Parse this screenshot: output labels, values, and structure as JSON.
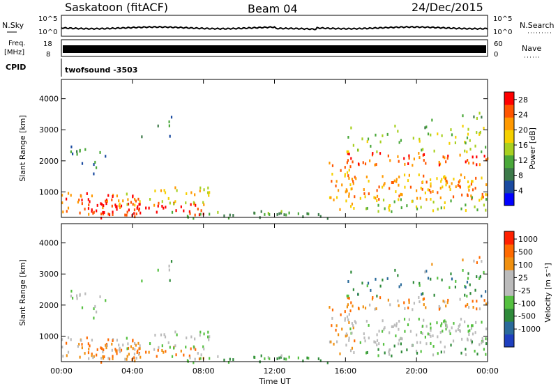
{
  "header": {
    "station": "Saskatoon (fitACF)",
    "beam": "Beam 04",
    "date": "24/Dec/2015"
  },
  "strip_labels": {
    "nsky": "N.Sky",
    "nsearch": "N.Search",
    "freq": "Freq.",
    "freq_unit": "[MHz]",
    "nave": "Nave",
    "cpid": "CPID",
    "cpid_value": "twofsound -3503",
    "nsky_ticks": [
      "10^5",
      "10^0"
    ],
    "freq_ticks": [
      "18",
      "8"
    ],
    "nave_ticks": [
      "60",
      "0"
    ]
  },
  "colors": {
    "power_scale": [
      "#0000ff",
      "#1a4aa0",
      "#3d7a4a",
      "#4aa83a",
      "#a8d020",
      "#f5d000",
      "#ff9900",
      "#ff5500",
      "#ff0000"
    ],
    "velocity_scale": [
      "#1e3fbf",
      "#2a6a9a",
      "#2f8a3a",
      "#55c040",
      "#bbbbbb",
      "#bbbbbb",
      "#f09010",
      "#ff6a00",
      "#ff2000"
    ]
  },
  "chart_data": [
    {
      "type": "heatmap",
      "name": "power",
      "xlabel": "",
      "ylabel": "Slant Range [km]",
      "x_ticks": [
        "00:00",
        "04:00",
        "08:00",
        "12:00",
        "16:00",
        "20:00",
        "00:00"
      ],
      "y_ticks": [
        "1000",
        "2000",
        "3000",
        "4000"
      ],
      "xlim": [
        0,
        24
      ],
      "ylim": [
        180,
        4620
      ],
      "colorbar_label": "Power [dB]",
      "colorbar_ticks": [
        "4",
        "8",
        "12",
        "16",
        "20",
        "24",
        "28"
      ],
      "colorbar_range": [
        0,
        30
      ]
    },
    {
      "type": "heatmap",
      "name": "velocity",
      "xlabel": "Time UT",
      "ylabel": "Slant Range [km]",
      "x_ticks": [
        "00:00",
        "04:00",
        "08:00",
        "12:00",
        "16:00",
        "20:00",
        "00:00"
      ],
      "y_ticks": [
        "1000",
        "2000",
        "3000",
        "4000"
      ],
      "xlim": [
        0,
        24
      ],
      "ylim": [
        180,
        4620
      ],
      "colorbar_label": "Velocity [m s⁻¹]",
      "colorbar_ticks": [
        "1000",
        "500",
        "100",
        "25",
        "-25",
        "-100",
        "-500",
        "-1000"
      ]
    }
  ]
}
